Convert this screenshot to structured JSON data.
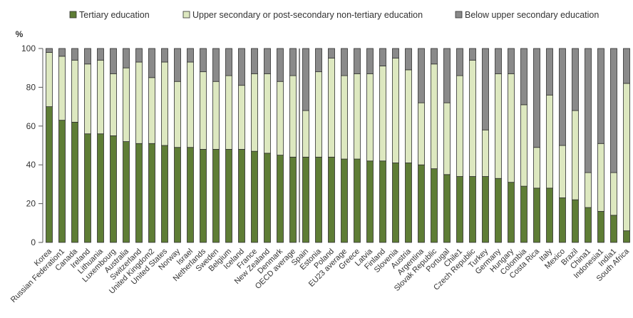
{
  "chart_data": {
    "type": "bar",
    "stacked": true,
    "y_unit_label": "%",
    "ylim": [
      0,
      100
    ],
    "yticks": [
      0,
      20,
      40,
      60,
      80,
      100
    ],
    "grid": false,
    "legend_position": "top",
    "categories": [
      "Korea",
      "Russian Federation1",
      "Canada",
      "Ireland",
      "Lithuania",
      "Luxembourg",
      "Australia",
      "Switzerland",
      "United Kingdom2",
      "United States",
      "Norway",
      "Israel",
      "Netherlands",
      "Sweden",
      "Belgium",
      "Iceland",
      "France",
      "New Zealand",
      "Denmark",
      "OECD average",
      "Spain",
      "Estonia",
      "Poland",
      "EU23 average",
      "Greece",
      "Latvia",
      "Finland",
      "Slovenia",
      "Austria",
      "Argentina",
      "Slovak Republic",
      "Portugal",
      "Chile1",
      "Czech Republic",
      "Turkey",
      "Germany",
      "Hungary",
      "Colombia",
      "Costa Rica",
      "Italy",
      "Mexico",
      "Brazil",
      "China1",
      "Indonesia1",
      "India1",
      "South Africa"
    ],
    "series": [
      {
        "name": "Tertiary education",
        "color": "#5e7d35",
        "values": [
          70,
          63,
          62,
          56,
          56,
          55,
          52,
          51,
          51,
          50,
          49,
          49,
          48,
          48,
          48,
          48,
          47,
          46,
          45,
          44,
          44,
          44,
          44,
          43,
          43,
          42,
          42,
          41,
          41,
          40,
          38,
          35,
          34,
          34,
          34,
          33,
          31,
          29,
          28,
          28,
          23,
          22,
          18,
          16,
          14,
          6
        ]
      },
      {
        "name": "Upper secondary or post-secondary non-tertiary education",
        "color": "#dde8c0",
        "values": [
          28,
          33,
          32,
          36,
          38,
          32,
          38,
          42,
          34,
          43,
          34,
          44,
          40,
          35,
          38,
          33,
          40,
          41,
          38,
          42,
          24,
          44,
          51,
          43,
          44,
          45,
          49,
          54,
          48,
          32,
          54,
          37,
          52,
          60,
          24,
          54,
          56,
          42,
          21,
          48,
          27,
          46,
          18,
          35,
          22,
          76
        ]
      },
      {
        "name": "Below upper secondary education",
        "color": "#8a8a8a",
        "values": [
          2,
          4,
          6,
          8,
          6,
          13,
          10,
          7,
          15,
          7,
          17,
          7,
          12,
          17,
          14,
          19,
          13,
          13,
          17,
          14,
          32,
          12,
          5,
          14,
          13,
          13,
          9,
          5,
          11,
          28,
          8,
          28,
          14,
          6,
          42,
          13,
          13,
          29,
          51,
          24,
          50,
          32,
          64,
          49,
          64,
          18
        ]
      }
    ]
  }
}
